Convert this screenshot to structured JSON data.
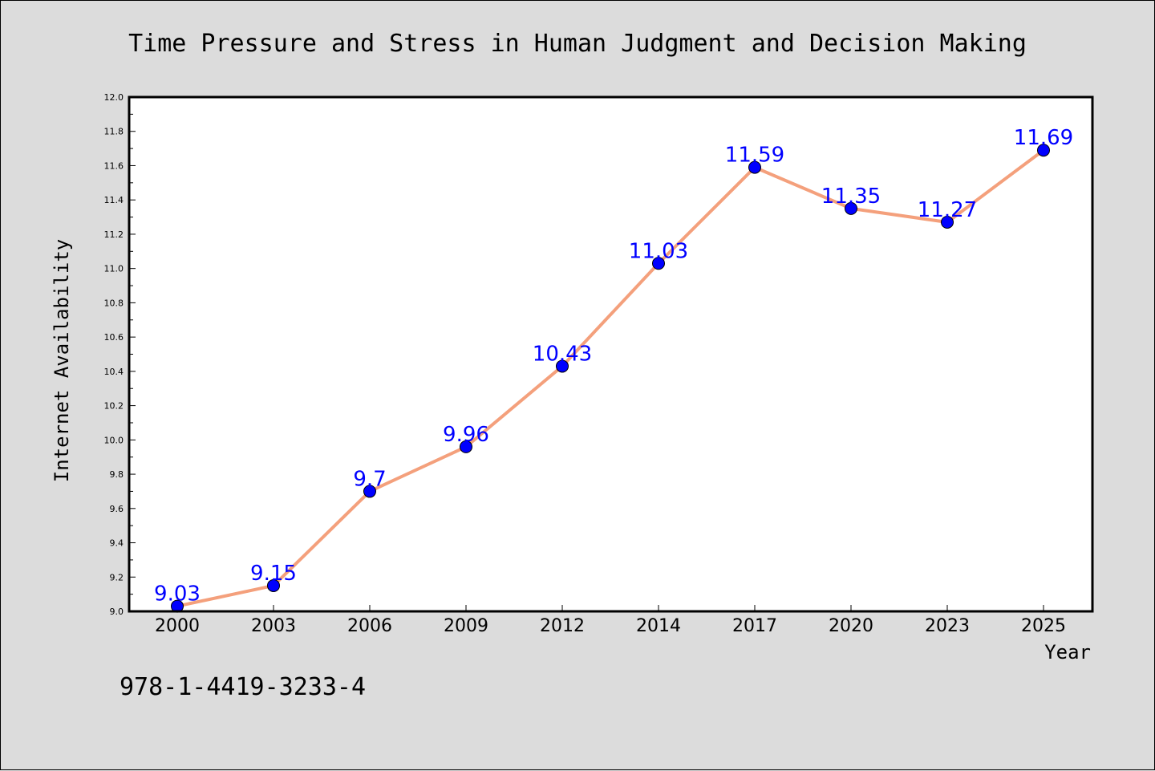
{
  "chart_data": {
    "type": "line",
    "title": "Time Pressure and Stress in Human Judgment and Decision Making",
    "xlabel": "Year",
    "ylabel": "Internet Availability",
    "categories": [
      "2000",
      "2003",
      "2006",
      "2009",
      "2012",
      "2014",
      "2017",
      "2020",
      "2023",
      "2025"
    ],
    "series": [
      {
        "values": [
          9.03,
          9.15,
          9.7,
          9.96,
          10.43,
          11.03,
          11.59,
          11.35,
          11.27,
          11.69
        ],
        "data_labels": [
          "9.03",
          "9.15",
          "9.7",
          "9.96",
          "10.43",
          "11.03",
          "11.59",
          "11.35",
          "11.27",
          "11.69"
        ],
        "line_color": "#f4a07c",
        "marker_color": "#0000ff",
        "label_color": "#0000ff"
      }
    ],
    "ylim": [
      9.0,
      12.0
    ],
    "yticks": [
      "9.0",
      "9.2",
      "9.4",
      "9.6",
      "9.8",
      "10.0",
      "10.2",
      "10.4",
      "10.6",
      "10.8",
      "11.0",
      "11.2",
      "11.4",
      "11.6",
      "11.8",
      "12.0"
    ],
    "grid": false,
    "legend": "none"
  },
  "footer": {
    "isbn": "978-1-4419-3233-4"
  },
  "colors": {
    "background": "#dcdcdc",
    "plot_background": "#ffffff"
  }
}
